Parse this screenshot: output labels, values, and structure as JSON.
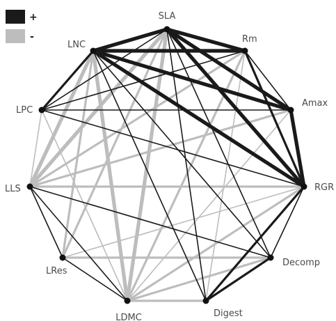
{
  "legend": {
    "positive": {
      "label": "+",
      "color": "#1a1a1a"
    },
    "negative": {
      "label": "-",
      "color": "#bdbdbd"
    }
  },
  "nodes": [
    {
      "id": "SLA",
      "label": "SLA"
    },
    {
      "id": "Rm",
      "label": "Rm"
    },
    {
      "id": "Amax",
      "label": "Amax"
    },
    {
      "id": "RGR",
      "label": "RGR"
    },
    {
      "id": "Decomp",
      "label": "Decomp"
    },
    {
      "id": "Digest",
      "label": "Digest"
    },
    {
      "id": "LDMC",
      "label": "LDMC"
    },
    {
      "id": "LRes",
      "label": "LRes"
    },
    {
      "id": "LLS",
      "label": "LLS"
    },
    {
      "id": "LPC",
      "label": "LPC"
    },
    {
      "id": "LNC",
      "label": "LNC"
    }
  ],
  "edges": [
    {
      "from": "SLA",
      "to": "LNC",
      "sign": "+",
      "strength": 3
    },
    {
      "from": "SLA",
      "to": "Rm",
      "sign": "+",
      "strength": 3
    },
    {
      "from": "SLA",
      "to": "Amax",
      "sign": "+",
      "strength": 3
    },
    {
      "from": "SLA",
      "to": "RGR",
      "sign": "+",
      "strength": 3
    },
    {
      "from": "SLA",
      "to": "Decomp",
      "sign": "+",
      "strength": 1
    },
    {
      "from": "SLA",
      "to": "Digest",
      "sign": "+",
      "strength": 1
    },
    {
      "from": "SLA",
      "to": "LDMC",
      "sign": "-",
      "strength": 3
    },
    {
      "from": "SLA",
      "to": "LRes",
      "sign": "-",
      "strength": 2
    },
    {
      "from": "SLA",
      "to": "LLS",
      "sign": "-",
      "strength": 3
    },
    {
      "from": "SLA",
      "to": "LPC",
      "sign": "+",
      "strength": 1
    },
    {
      "from": "LNC",
      "to": "Rm",
      "sign": "+",
      "strength": 3
    },
    {
      "from": "LNC",
      "to": "Amax",
      "sign": "+",
      "strength": 3
    },
    {
      "from": "LNC",
      "to": "RGR",
      "sign": "+",
      "strength": 3
    },
    {
      "from": "LNC",
      "to": "Decomp",
      "sign": "+",
      "strength": 1
    },
    {
      "from": "LNC",
      "to": "Digest",
      "sign": "+",
      "strength": 1
    },
    {
      "from": "LNC",
      "to": "LDMC",
      "sign": "-",
      "strength": 3
    },
    {
      "from": "LNC",
      "to": "LRes",
      "sign": "-",
      "strength": 2
    },
    {
      "from": "LNC",
      "to": "LLS",
      "sign": "-",
      "strength": 3
    },
    {
      "from": "LNC",
      "to": "LPC",
      "sign": "+",
      "strength": 2
    },
    {
      "from": "Rm",
      "to": "RGR",
      "sign": "+",
      "strength": 2
    },
    {
      "from": "Rm",
      "to": "Amax",
      "sign": "+",
      "strength": 1
    },
    {
      "from": "Rm",
      "to": "LPC",
      "sign": "+",
      "strength": 1
    },
    {
      "from": "Rm",
      "to": "LDMC",
      "sign": "-",
      "strength": 2
    },
    {
      "from": "Rm",
      "to": "LLS",
      "sign": "-",
      "strength": 2
    },
    {
      "from": "Rm",
      "to": "Digest",
      "sign": "-",
      "strength": 1
    },
    {
      "from": "Amax",
      "to": "RGR",
      "sign": "+",
      "strength": 3
    },
    {
      "from": "Amax",
      "to": "LPC",
      "sign": "+",
      "strength": 1
    },
    {
      "from": "Amax",
      "to": "LLS",
      "sign": "-",
      "strength": 2
    },
    {
      "from": "Amax",
      "to": "LDMC",
      "sign": "-",
      "strength": 1
    },
    {
      "from": "RGR",
      "to": "LLS",
      "sign": "-",
      "strength": 2
    },
    {
      "from": "RGR",
      "to": "LDMC",
      "sign": "-",
      "strength": 2
    },
    {
      "from": "RGR",
      "to": "LRes",
      "sign": "-",
      "strength": 1
    },
    {
      "from": "RGR",
      "to": "Decomp",
      "sign": "+",
      "strength": 1
    },
    {
      "from": "RGR",
      "to": "Digest",
      "sign": "+",
      "strength": 2
    },
    {
      "from": "RGR",
      "to": "LPC",
      "sign": "+",
      "strength": 1
    },
    {
      "from": "Decomp",
      "to": "Digest",
      "sign": "+",
      "strength": 2
    },
    {
      "from": "Decomp",
      "to": "LRes",
      "sign": "-",
      "strength": 2
    },
    {
      "from": "Decomp",
      "to": "LLS",
      "sign": "+",
      "strength": 1
    },
    {
      "from": "Decomp",
      "to": "LDMC",
      "sign": "-",
      "strength": 2
    },
    {
      "from": "Digest",
      "to": "LDMC",
      "sign": "-",
      "strength": 2
    },
    {
      "from": "LDMC",
      "to": "LRes",
      "sign": "+",
      "strength": 1
    },
    {
      "from": "LDMC",
      "to": "LLS",
      "sign": "+",
      "strength": 1
    },
    {
      "from": "LDMC",
      "to": "LPC",
      "sign": "-",
      "strength": 1
    },
    {
      "from": "LRes",
      "to": "LLS",
      "sign": "+",
      "strength": 1
    },
    {
      "from": "LLS",
      "to": "LPC",
      "sign": "-",
      "strength": 1
    }
  ]
}
